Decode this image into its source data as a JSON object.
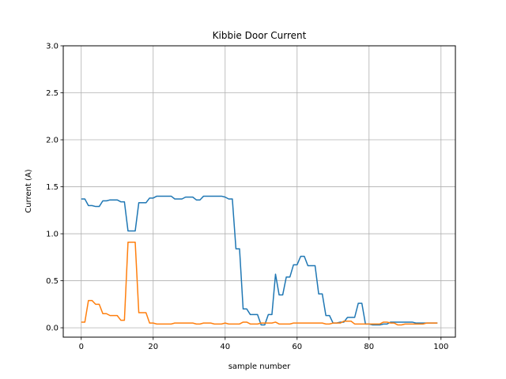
{
  "chart_data": {
    "type": "line",
    "title": "Kibbie Door Current",
    "xlabel": "sample number",
    "ylabel": "Current (A)",
    "xlim": [
      -5,
      104
    ],
    "ylim": [
      -0.1,
      3.0
    ],
    "xticks": [
      0,
      20,
      40,
      60,
      80,
      100
    ],
    "xtick_labels": [
      "0",
      "20",
      "40",
      "60",
      "80",
      "100"
    ],
    "yticks": [
      0.0,
      0.5,
      1.0,
      1.5,
      2.0,
      2.5,
      3.0
    ],
    "ytick_labels": [
      "0.0",
      "0.5",
      "1.0",
      "1.5",
      "2.0",
      "2.5",
      "3.0"
    ],
    "grid": true,
    "series": [
      {
        "color": "#1f77b4",
        "x": [
          0,
          1,
          2,
          3,
          4,
          5,
          6,
          7,
          8,
          9,
          10,
          11,
          12,
          13,
          14,
          15,
          16,
          17,
          18,
          19,
          20,
          21,
          22,
          23,
          24,
          25,
          26,
          27,
          28,
          29,
          30,
          31,
          32,
          33,
          34,
          35,
          36,
          37,
          38,
          39,
          40,
          41,
          42,
          43,
          44,
          45,
          46,
          47,
          48,
          49,
          50,
          51,
          52,
          53,
          54,
          55,
          56,
          57,
          58,
          59,
          60,
          61,
          62,
          63,
          64,
          65,
          66,
          67,
          68,
          69,
          70,
          71,
          72,
          73,
          74,
          75,
          76,
          77,
          78,
          79,
          80,
          81,
          82,
          83,
          84,
          85,
          86,
          87,
          88,
          89,
          90,
          91,
          92,
          93,
          94,
          95,
          96,
          97,
          98,
          99
        ],
        "values": [
          1.37,
          1.37,
          1.3,
          1.3,
          1.29,
          1.29,
          1.35,
          1.35,
          1.36,
          1.36,
          1.36,
          1.34,
          1.34,
          1.03,
          1.03,
          1.03,
          1.33,
          1.33,
          1.33,
          1.38,
          1.38,
          1.4,
          1.4,
          1.4,
          1.4,
          1.4,
          1.37,
          1.37,
          1.37,
          1.39,
          1.39,
          1.39,
          1.36,
          1.36,
          1.4,
          1.4,
          1.4,
          1.4,
          1.4,
          1.4,
          1.39,
          1.37,
          1.37,
          0.84,
          0.84,
          0.2,
          0.2,
          0.14,
          0.14,
          0.14,
          0.03,
          0.03,
          0.14,
          0.14,
          0.57,
          0.35,
          0.35,
          0.54,
          0.54,
          0.67,
          0.67,
          0.76,
          0.76,
          0.66,
          0.66,
          0.66,
          0.36,
          0.36,
          0.13,
          0.13,
          0.05,
          0.05,
          0.06,
          0.06,
          0.11,
          0.11,
          0.11,
          0.26,
          0.26,
          0.04,
          0.04,
          0.03,
          0.03,
          0.03,
          0.04,
          0.04,
          0.06,
          0.06,
          0.06,
          0.06,
          0.06,
          0.06,
          0.06,
          0.05,
          0.05,
          0.05,
          0.05,
          0.05,
          0.05,
          0.05
        ]
      },
      {
        "color": "#ff7f0e",
        "x": [
          0,
          1,
          2,
          3,
          4,
          5,
          6,
          7,
          8,
          9,
          10,
          11,
          12,
          13,
          14,
          15,
          16,
          17,
          18,
          19,
          20,
          21,
          22,
          23,
          24,
          25,
          26,
          27,
          28,
          29,
          30,
          31,
          32,
          33,
          34,
          35,
          36,
          37,
          38,
          39,
          40,
          41,
          42,
          43,
          44,
          45,
          46,
          47,
          48,
          49,
          50,
          51,
          52,
          53,
          54,
          55,
          56,
          57,
          58,
          59,
          60,
          61,
          62,
          63,
          64,
          65,
          66,
          67,
          68,
          69,
          70,
          71,
          72,
          73,
          74,
          75,
          76,
          77,
          78,
          79,
          80,
          81,
          82,
          83,
          84,
          85,
          86,
          87,
          88,
          89,
          90,
          91,
          92,
          93,
          94,
          95,
          96,
          97,
          98,
          99
        ],
        "values": [
          0.06,
          0.06,
          0.29,
          0.29,
          0.25,
          0.25,
          0.15,
          0.15,
          0.13,
          0.13,
          0.13,
          0.08,
          0.08,
          0.91,
          0.91,
          0.91,
          0.16,
          0.16,
          0.16,
          0.05,
          0.05,
          0.04,
          0.04,
          0.04,
          0.04,
          0.04,
          0.05,
          0.05,
          0.05,
          0.05,
          0.05,
          0.05,
          0.04,
          0.04,
          0.05,
          0.05,
          0.05,
          0.04,
          0.04,
          0.04,
          0.05,
          0.04,
          0.04,
          0.04,
          0.04,
          0.06,
          0.06,
          0.04,
          0.04,
          0.04,
          0.05,
          0.05,
          0.05,
          0.05,
          0.06,
          0.04,
          0.04,
          0.04,
          0.04,
          0.05,
          0.05,
          0.05,
          0.05,
          0.05,
          0.05,
          0.05,
          0.05,
          0.05,
          0.04,
          0.04,
          0.05,
          0.05,
          0.05,
          0.07,
          0.07,
          0.07,
          0.04,
          0.04,
          0.04,
          0.04,
          0.04,
          0.04,
          0.04,
          0.04,
          0.06,
          0.06,
          0.05,
          0.05,
          0.03,
          0.03,
          0.04,
          0.04,
          0.04,
          0.04,
          0.04,
          0.04,
          0.05,
          0.05,
          0.05,
          0.05
        ]
      }
    ]
  }
}
